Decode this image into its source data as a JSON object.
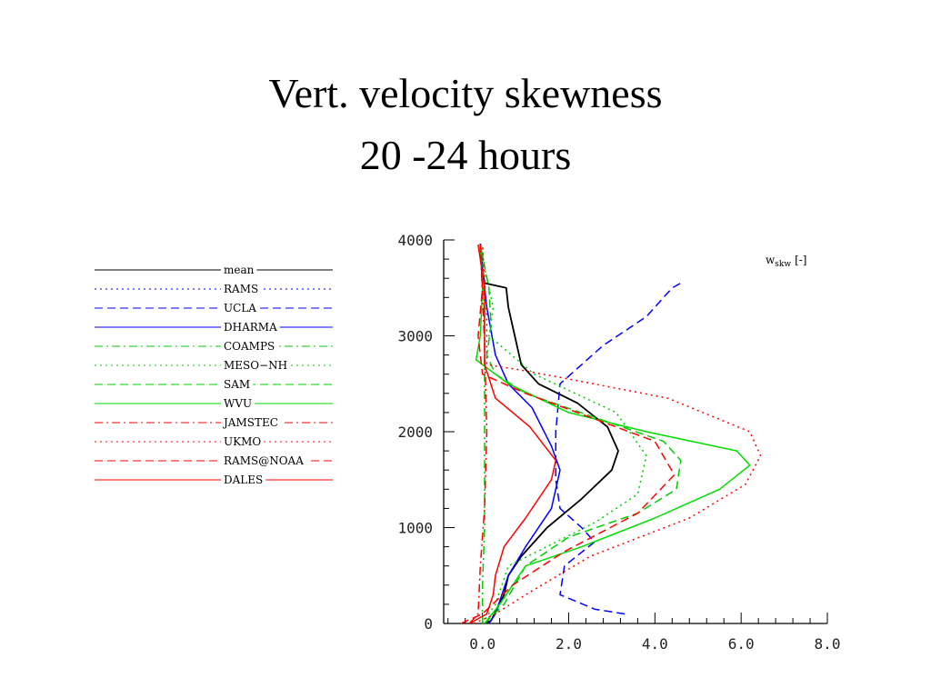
{
  "title": {
    "line1": "Vert. velocity skewness",
    "line2": "20 -24 hours"
  },
  "chart_data": {
    "type": "line",
    "units_label": {
      "main": "w",
      "sub": "skw",
      "suffix": "[-]"
    },
    "xlim": [
      -0.9,
      8.0
    ],
    "ylim": [
      0,
      4000
    ],
    "xticks": [
      {
        "value": 0.0,
        "label": "0.0"
      },
      {
        "value": 2.0,
        "label": "2.0"
      },
      {
        "value": 4.0,
        "label": "4.0"
      },
      {
        "value": 6.0,
        "label": "6.0"
      },
      {
        "value": 8.0,
        "label": "8.0"
      }
    ],
    "yticks": [
      {
        "value": 0,
        "label": "0"
      },
      {
        "value": 1000,
        "label": "1000"
      },
      {
        "value": 2000,
        "label": "2000"
      },
      {
        "value": 3000,
        "label": "3000"
      },
      {
        "value": 4000,
        "label": "4000"
      }
    ],
    "grid": false,
    "legend_placement": "left",
    "series": [
      {
        "name": "mean",
        "color": "#000000",
        "dash": "solid",
        "points": [
          [
            0.05,
            0
          ],
          [
            0.2,
            30
          ],
          [
            0.5,
            300
          ],
          [
            0.6,
            500
          ],
          [
            0.9,
            700
          ],
          [
            1.5,
            1000
          ],
          [
            2.3,
            1300
          ],
          [
            3.0,
            1600
          ],
          [
            3.15,
            1800
          ],
          [
            2.9,
            2050
          ],
          [
            2.2,
            2300
          ],
          [
            1.3,
            2500
          ],
          [
            0.9,
            2700
          ],
          [
            0.75,
            3000
          ],
          [
            0.6,
            3300
          ],
          [
            0.55,
            3500
          ],
          [
            0.05,
            3550
          ],
          [
            0.0,
            3700
          ],
          [
            -0.05,
            3960
          ]
        ]
      },
      {
        "name": "RAMS",
        "color": "#0000ff",
        "dash": "dotted",
        "points": []
      },
      {
        "name": "UCLA",
        "color": "#0000ff",
        "dash": "dashed",
        "points": [
          [
            3.3,
            100
          ],
          [
            2.6,
            150
          ],
          [
            1.8,
            300
          ],
          [
            1.9,
            600
          ],
          [
            2.6,
            850
          ],
          [
            2.3,
            1000
          ],
          [
            1.8,
            1200
          ],
          [
            1.7,
            1500
          ],
          [
            1.7,
            2000
          ],
          [
            1.8,
            2500
          ],
          [
            2.8,
            2900
          ],
          [
            3.8,
            3200
          ],
          [
            4.4,
            3500
          ],
          [
            4.6,
            3550
          ]
        ]
      },
      {
        "name": "DHARMA",
        "color": "#0000ff",
        "dash": "solid",
        "points": [
          [
            0.15,
            0
          ],
          [
            0.3,
            100
          ],
          [
            0.6,
            500
          ],
          [
            1.0,
            800
          ],
          [
            1.6,
            1200
          ],
          [
            1.8,
            1600
          ],
          [
            1.6,
            1850
          ],
          [
            1.15,
            2250
          ],
          [
            0.6,
            2500
          ],
          [
            0.3,
            2800
          ],
          [
            0.1,
            3300
          ],
          [
            0.0,
            3700
          ],
          [
            -0.05,
            3960
          ]
        ]
      },
      {
        "name": "COAMPS",
        "color": "#00cc00",
        "dash": "dashdot",
        "points": [
          [
            0.0,
            0
          ],
          [
            0.0,
            400
          ],
          [
            0.05,
            1000
          ],
          [
            0.05,
            2000
          ],
          [
            0.05,
            3000
          ],
          [
            0.0,
            3960
          ]
        ]
      },
      {
        "name": "MESO−NH",
        "color": "#00cc00",
        "dash": "dotted",
        "points": [
          [
            0.0,
            0
          ],
          [
            0.3,
            200
          ],
          [
            0.6,
            600
          ],
          [
            2.6,
            1050
          ],
          [
            3.6,
            1350
          ],
          [
            3.8,
            1750
          ],
          [
            3.1,
            2200
          ],
          [
            1.2,
            2600
          ],
          [
            0.15,
            3000
          ],
          [
            0.25,
            3300
          ],
          [
            0.05,
            3700
          ],
          [
            -0.1,
            3950
          ]
        ]
      },
      {
        "name": "SAM",
        "color": "#00cc00",
        "dash": "dashed",
        "points": [
          [
            0.05,
            0
          ],
          [
            0.5,
            200
          ],
          [
            1.0,
            600
          ],
          [
            2.0,
            900
          ],
          [
            3.6,
            1150
          ],
          [
            4.5,
            1400
          ],
          [
            4.6,
            1700
          ],
          [
            4.2,
            1900
          ],
          [
            2.6,
            2150
          ],
          [
            1.0,
            2400
          ],
          [
            0.3,
            2600
          ],
          [
            0.1,
            2800
          ],
          [
            0.2,
            3100
          ],
          [
            0.15,
            3500
          ],
          [
            -0.05,
            3950
          ]
        ]
      },
      {
        "name": "WVU",
        "color": "#00dd00",
        "dash": "solid",
        "points": [
          [
            0.05,
            0
          ],
          [
            0.4,
            200
          ],
          [
            1.0,
            600
          ],
          [
            2.3,
            800
          ],
          [
            4.0,
            1100
          ],
          [
            5.5,
            1400
          ],
          [
            6.2,
            1650
          ],
          [
            5.9,
            1800
          ],
          [
            3.8,
            2000
          ],
          [
            2.0,
            2200
          ],
          [
            0.6,
            2500
          ],
          [
            -0.15,
            2750
          ],
          [
            -0.05,
            3000
          ],
          [
            0.0,
            3500
          ],
          [
            -0.05,
            3950
          ]
        ]
      },
      {
        "name": "JAMSTEC",
        "color": "#ff0000",
        "dash": "dashdot",
        "points": [
          [
            -0.3,
            0
          ],
          [
            -0.1,
            100
          ],
          [
            -0.05,
            600
          ],
          [
            0.05,
            1200
          ],
          [
            0.1,
            2000
          ],
          [
            0.05,
            2900
          ],
          [
            -0.05,
            3950
          ]
        ]
      },
      {
        "name": "UKMO",
        "color": "#ff0000",
        "dash": "dotted",
        "points": [
          [
            -0.2,
            0
          ],
          [
            0.3,
            100
          ],
          [
            1.0,
            300
          ],
          [
            2.5,
            700
          ],
          [
            4.8,
            1100
          ],
          [
            6.1,
            1450
          ],
          [
            6.45,
            1750
          ],
          [
            6.2,
            2000
          ],
          [
            4.3,
            2350
          ],
          [
            2.0,
            2550
          ],
          [
            0.8,
            2650
          ],
          [
            0.1,
            2700
          ],
          [
            0.1,
            3200
          ],
          [
            0.0,
            3950
          ]
        ]
      },
      {
        "name": "RAMS@NOAA",
        "color": "#ff0000",
        "dash": "dashed",
        "points": [
          [
            -0.5,
            0
          ],
          [
            0.0,
            100
          ],
          [
            0.7,
            400
          ],
          [
            1.9,
            750
          ],
          [
            3.6,
            1150
          ],
          [
            4.45,
            1550
          ],
          [
            4.0,
            1900
          ],
          [
            2.2,
            2200
          ],
          [
            1.0,
            2400
          ],
          [
            0.0,
            2600
          ],
          [
            -0.1,
            3000
          ],
          [
            0.0,
            3500
          ],
          [
            -0.05,
            3950
          ]
        ]
      },
      {
        "name": "DALES",
        "color": "#ff0000",
        "dash": "solid",
        "points": [
          [
            -0.3,
            0
          ],
          [
            0.1,
            100
          ],
          [
            0.25,
            300
          ],
          [
            0.3,
            500
          ],
          [
            0.5,
            800
          ],
          [
            1.0,
            1100
          ],
          [
            1.6,
            1500
          ],
          [
            1.7,
            1700
          ],
          [
            1.1,
            2050
          ],
          [
            0.3,
            2350
          ],
          [
            0.05,
            2700
          ],
          [
            0.05,
            3500
          ],
          [
            -0.1,
            3950
          ]
        ]
      }
    ]
  }
}
